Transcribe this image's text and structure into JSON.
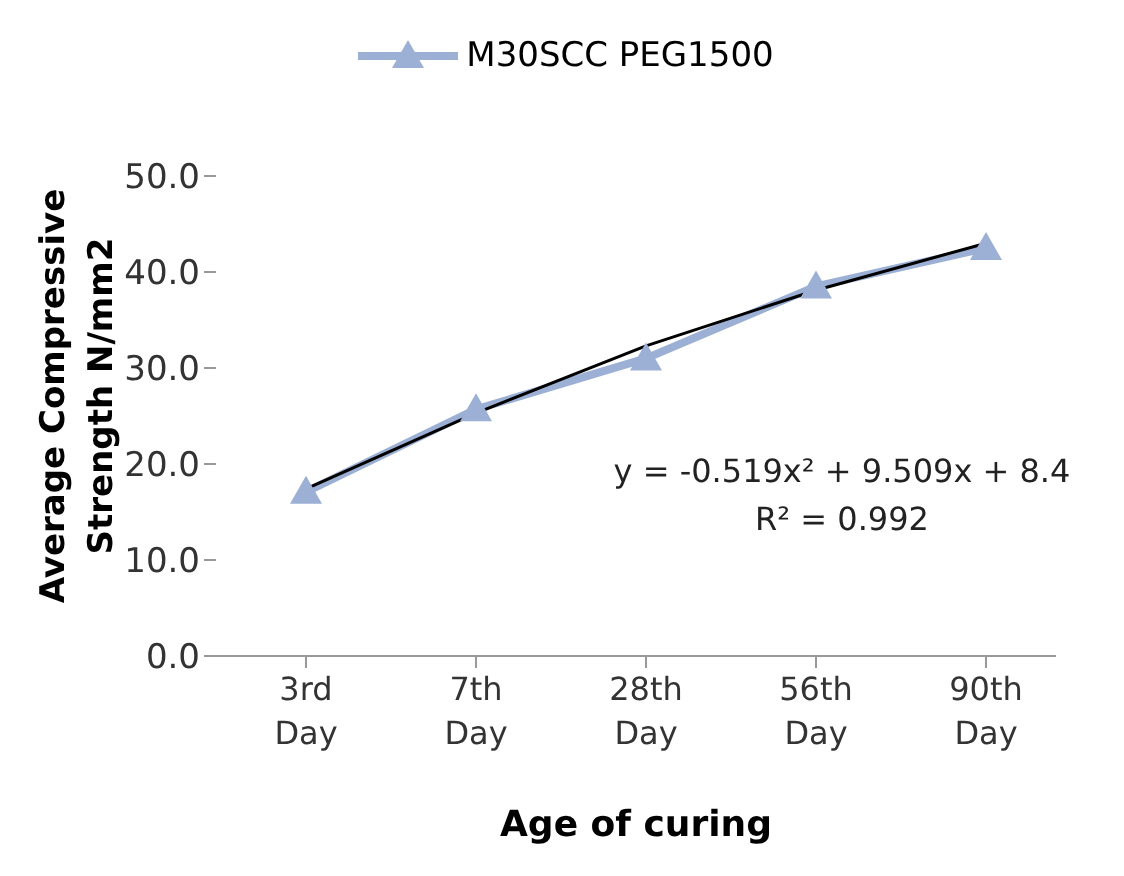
{
  "chart_data": {
    "type": "line",
    "categories": [
      "3rd Day",
      "7th Day",
      "28th Day",
      "56th Day",
      "90th Day"
    ],
    "series": [
      {
        "name": "M30SCC PEG1500",
        "color": "#9bb0d4",
        "values": [
          17.1,
          25.7,
          31.0,
          38.5,
          42.5
        ],
        "marker": "triangle"
      },
      {
        "color": "#000000",
        "values": [
          17.4,
          25.3,
          32.3,
          38.1,
          43.0
        ],
        "marker": "none"
      }
    ],
    "ylabel": "Average Compressive Strength N/mm2",
    "xlabel": "Age of curing",
    "ylim": [
      0,
      50
    ],
    "yticks": [
      {
        "value": 0,
        "label": "0.0"
      },
      {
        "value": 10,
        "label": "10.0"
      },
      {
        "value": 20,
        "label": "20.0"
      },
      {
        "value": 30,
        "label": "30.0"
      },
      {
        "value": 40,
        "label": "40.0"
      },
      {
        "value": 50,
        "label": "50.0"
      }
    ],
    "annotations": [
      "y = -0.519x² + 9.509x + 8.4",
      "R² = 0.992"
    ],
    "grid": false,
    "legend": "top"
  }
}
